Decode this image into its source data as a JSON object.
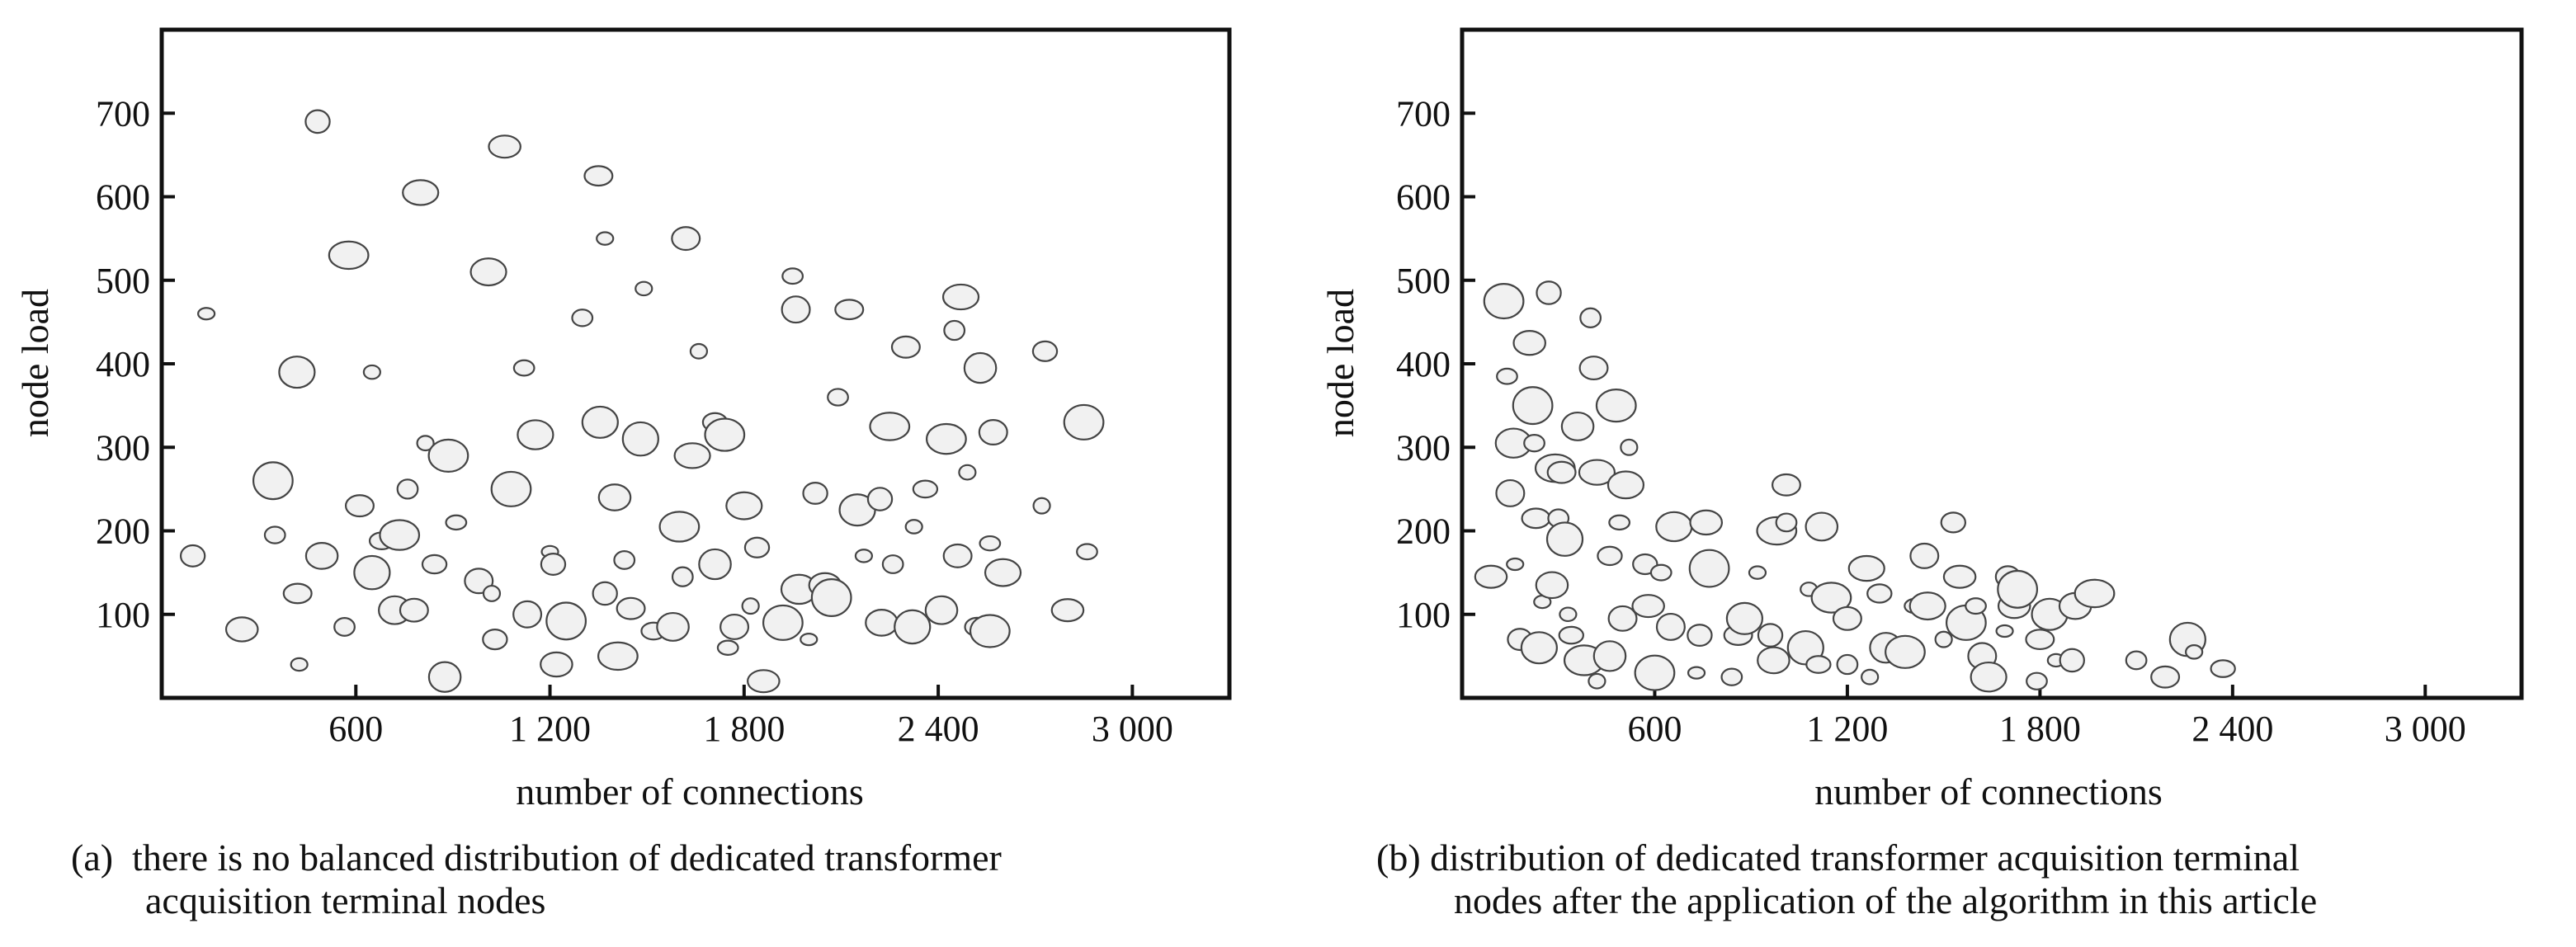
{
  "chart_data": [
    {
      "type": "scatter",
      "panel_label": "(a)",
      "caption_line1": "there is no balanced distribution of dedicated transformer",
      "caption_line2": "acquisition terminal nodes",
      "xlabel": "number of connections",
      "ylabel": "node load",
      "xlim": [
        0,
        3300
      ],
      "ylim": [
        0,
        800
      ],
      "xticks": [
        600,
        1200,
        1800,
        2400,
        3000
      ],
      "xtick_labels": [
        "600",
        "1 200",
        "1 800",
        "2 400",
        "3 000"
      ],
      "yticks": [
        100,
        200,
        300,
        400,
        500,
        600,
        700
      ],
      "ytick_labels": [
        "100",
        "200",
        "300",
        "400",
        "500",
        "600",
        "700"
      ],
      "grid": false,
      "marker": "hollow ellipse",
      "marker_fill": "#f1f1f1",
      "marker_stroke": "#444444",
      "points": [
        [
          138,
          460
        ],
        [
          96,
          170
        ],
        [
          248,
          82
        ],
        [
          344,
          260
        ],
        [
          350,
          195
        ],
        [
          420,
          125
        ],
        [
          418,
          390
        ],
        [
          425,
          40
        ],
        [
          482,
          690
        ],
        [
          495,
          170
        ],
        [
          578,
          530
        ],
        [
          565,
          85
        ],
        [
          612,
          230
        ],
        [
          650,
          150
        ],
        [
          650,
          390
        ],
        [
          680,
          188
        ],
        [
          720,
          105
        ],
        [
          735,
          195
        ],
        [
          760,
          250
        ],
        [
          780,
          105
        ],
        [
          800,
          605
        ],
        [
          815,
          305
        ],
        [
          843,
          160
        ],
        [
          875,
          25
        ],
        [
          886,
          290
        ],
        [
          910,
          210
        ],
        [
          980,
          140
        ],
        [
          1010,
          510
        ],
        [
          1020,
          125
        ],
        [
          1030,
          70
        ],
        [
          1060,
          660
        ],
        [
          1080,
          250
        ],
        [
          1120,
          395
        ],
        [
          1130,
          100
        ],
        [
          1155,
          315
        ],
        [
          1200,
          175
        ],
        [
          1210,
          160
        ],
        [
          1220,
          40
        ],
        [
          1250,
          92
        ],
        [
          1300,
          455
        ],
        [
          1350,
          625
        ],
        [
          1355,
          330
        ],
        [
          1370,
          550
        ],
        [
          1370,
          125
        ],
        [
          1400,
          240
        ],
        [
          1410,
          50
        ],
        [
          1430,
          165
        ],
        [
          1450,
          107
        ],
        [
          1480,
          310
        ],
        [
          1490,
          490
        ],
        [
          1520,
          80
        ],
        [
          1580,
          85
        ],
        [
          1600,
          205
        ],
        [
          1610,
          145
        ],
        [
          1620,
          550
        ],
        [
          1640,
          290
        ],
        [
          1660,
          415
        ],
        [
          1710,
          330
        ],
        [
          1710,
          160
        ],
        [
          1740,
          315
        ],
        [
          1750,
          60
        ],
        [
          1770,
          85
        ],
        [
          1800,
          230
        ],
        [
          1820,
          110
        ],
        [
          1840,
          180
        ],
        [
          1860,
          20
        ],
        [
          1920,
          90
        ],
        [
          1950,
          505
        ],
        [
          1960,
          465
        ],
        [
          1970,
          130
        ],
        [
          2000,
          70
        ],
        [
          2020,
          245
        ],
        [
          2050,
          135
        ],
        [
          2070,
          120
        ],
        [
          2090,
          360
        ],
        [
          2125,
          465
        ],
        [
          2150,
          225
        ],
        [
          2170,
          170
        ],
        [
          2220,
          238
        ],
        [
          2225,
          90
        ],
        [
          2250,
          325
        ],
        [
          2260,
          160
        ],
        [
          2300,
          420
        ],
        [
          2320,
          85
        ],
        [
          2325,
          205
        ],
        [
          2360,
          250
        ],
        [
          2410,
          105
        ],
        [
          2425,
          310
        ],
        [
          2450,
          440
        ],
        [
          2460,
          170
        ],
        [
          2470,
          480
        ],
        [
          2490,
          270
        ],
        [
          2520,
          85
        ],
        [
          2530,
          395
        ],
        [
          2560,
          80
        ],
        [
          2560,
          185
        ],
        [
          2570,
          318
        ],
        [
          2600,
          150
        ],
        [
          2720,
          230
        ],
        [
          2730,
          415
        ],
        [
          2800,
          105
        ],
        [
          2850,
          330
        ],
        [
          2860,
          175
        ]
      ]
    },
    {
      "type": "scatter",
      "panel_label": "(b)",
      "caption_line1": "distribution of dedicated transformer acquisition terminal",
      "caption_line2": "nodes after the application of the algorithm in this article",
      "xlabel": "number of connections",
      "ylabel": "node load",
      "xlim": [
        0,
        3300
      ],
      "ylim": [
        0,
        800
      ],
      "xticks": [
        600,
        1200,
        1800,
        2400,
        3000
      ],
      "xtick_labels": [
        "600",
        "1 200",
        "1 800",
        "2 400",
        "3 000"
      ],
      "yticks": [
        100,
        200,
        300,
        400,
        500,
        600,
        700
      ],
      "ytick_labels": [
        "100",
        "200",
        "300",
        "400",
        "500",
        "600",
        "700"
      ],
      "grid": false,
      "marker": "hollow ellipse",
      "marker_fill": "#f1f1f1",
      "marker_stroke": "#444444",
      "points": [
        [
          90,
          145
        ],
        [
          130,
          475
        ],
        [
          140,
          385
        ],
        [
          150,
          245
        ],
        [
          160,
          305
        ],
        [
          165,
          160
        ],
        [
          180,
          70
        ],
        [
          210,
          425
        ],
        [
          220,
          350
        ],
        [
          225,
          305
        ],
        [
          230,
          215
        ],
        [
          240,
          60
        ],
        [
          250,
          115
        ],
        [
          270,
          485
        ],
        [
          280,
          135
        ],
        [
          290,
          275
        ],
        [
          300,
          215
        ],
        [
          310,
          270
        ],
        [
          320,
          190
        ],
        [
          330,
          100
        ],
        [
          340,
          75
        ],
        [
          360,
          325
        ],
        [
          380,
          45
        ],
        [
          400,
          455
        ],
        [
          410,
          395
        ],
        [
          420,
          270
        ],
        [
          420,
          20
        ],
        [
          460,
          170
        ],
        [
          460,
          50
        ],
        [
          480,
          350
        ],
        [
          490,
          210
        ],
        [
          500,
          95
        ],
        [
          510,
          255
        ],
        [
          520,
          300
        ],
        [
          570,
          160
        ],
        [
          580,
          110
        ],
        [
          600,
          30
        ],
        [
          620,
          150
        ],
        [
          650,
          85
        ],
        [
          660,
          205
        ],
        [
          730,
          30
        ],
        [
          740,
          75
        ],
        [
          760,
          210
        ],
        [
          770,
          155
        ],
        [
          840,
          25
        ],
        [
          860,
          75
        ],
        [
          880,
          95
        ],
        [
          920,
          150
        ],
        [
          960,
          75
        ],
        [
          970,
          45
        ],
        [
          980,
          200
        ],
        [
          1010,
          210
        ],
        [
          1010,
          255
        ],
        [
          1070,
          60
        ],
        [
          1080,
          130
        ],
        [
          1110,
          40
        ],
        [
          1120,
          205
        ],
        [
          1150,
          120
        ],
        [
          1200,
          40
        ],
        [
          1200,
          95
        ],
        [
          1260,
          155
        ],
        [
          1270,
          25
        ],
        [
          1300,
          125
        ],
        [
          1320,
          60
        ],
        [
          1380,
          55
        ],
        [
          1410,
          110
        ],
        [
          1440,
          170
        ],
        [
          1450,
          110
        ],
        [
          1500,
          70
        ],
        [
          1530,
          210
        ],
        [
          1550,
          145
        ],
        [
          1570,
          90
        ],
        [
          1600,
          110
        ],
        [
          1620,
          50
        ],
        [
          1640,
          25
        ],
        [
          1690,
          80
        ],
        [
          1700,
          145
        ],
        [
          1720,
          110
        ],
        [
          1730,
          130
        ],
        [
          1790,
          20
        ],
        [
          1800,
          70
        ],
        [
          1830,
          100
        ],
        [
          1850,
          45
        ],
        [
          1900,
          45
        ],
        [
          1910,
          110
        ],
        [
          1970,
          125
        ],
        [
          2100,
          45
        ],
        [
          2190,
          25
        ],
        [
          2260,
          70
        ],
        [
          2280,
          55
        ],
        [
          2370,
          35
        ]
      ]
    }
  ]
}
